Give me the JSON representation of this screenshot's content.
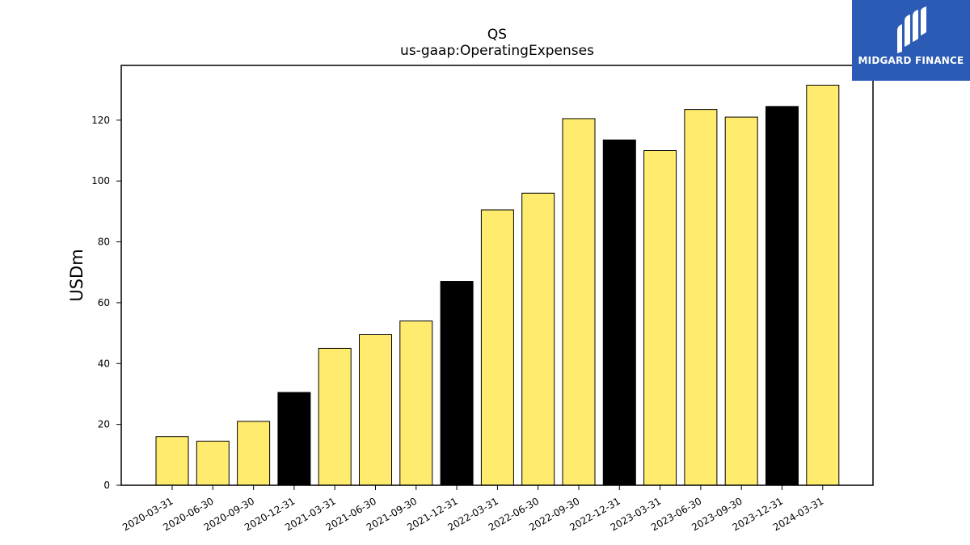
{
  "brand": {
    "name": "MIDGARD FINANCE",
    "logo_color": "#2b5bb5"
  },
  "colors": {
    "bar_default": "#ffec6e",
    "bar_highlight": "#000000",
    "bar_edge": "#000000"
  },
  "chart_data": {
    "type": "bar",
    "title": "QS",
    "subtitle": "us-gaap:OperatingExpenses",
    "xlabel": "",
    "ylabel": "USDm",
    "ylim": [
      0,
      138
    ],
    "yticks": [
      0,
      20,
      40,
      60,
      80,
      100,
      120
    ],
    "grid": false,
    "categories": [
      "2020-03-31",
      "2020-06-30",
      "2020-09-30",
      "2020-12-31",
      "2021-03-31",
      "2021-06-30",
      "2021-09-30",
      "2021-12-31",
      "2022-03-31",
      "2022-06-30",
      "2022-09-30",
      "2022-12-31",
      "2023-03-31",
      "2023-06-30",
      "2023-09-30",
      "2023-12-31",
      "2024-03-31"
    ],
    "values": [
      16,
      14.5,
      21,
      30.5,
      45,
      49.5,
      54,
      67,
      90.5,
      96,
      120.5,
      113.5,
      110,
      123.5,
      121,
      124.5,
      131.5
    ],
    "highlighted_categories": [
      "2020-12-31",
      "2021-12-31",
      "2022-12-31",
      "2023-12-31"
    ]
  }
}
